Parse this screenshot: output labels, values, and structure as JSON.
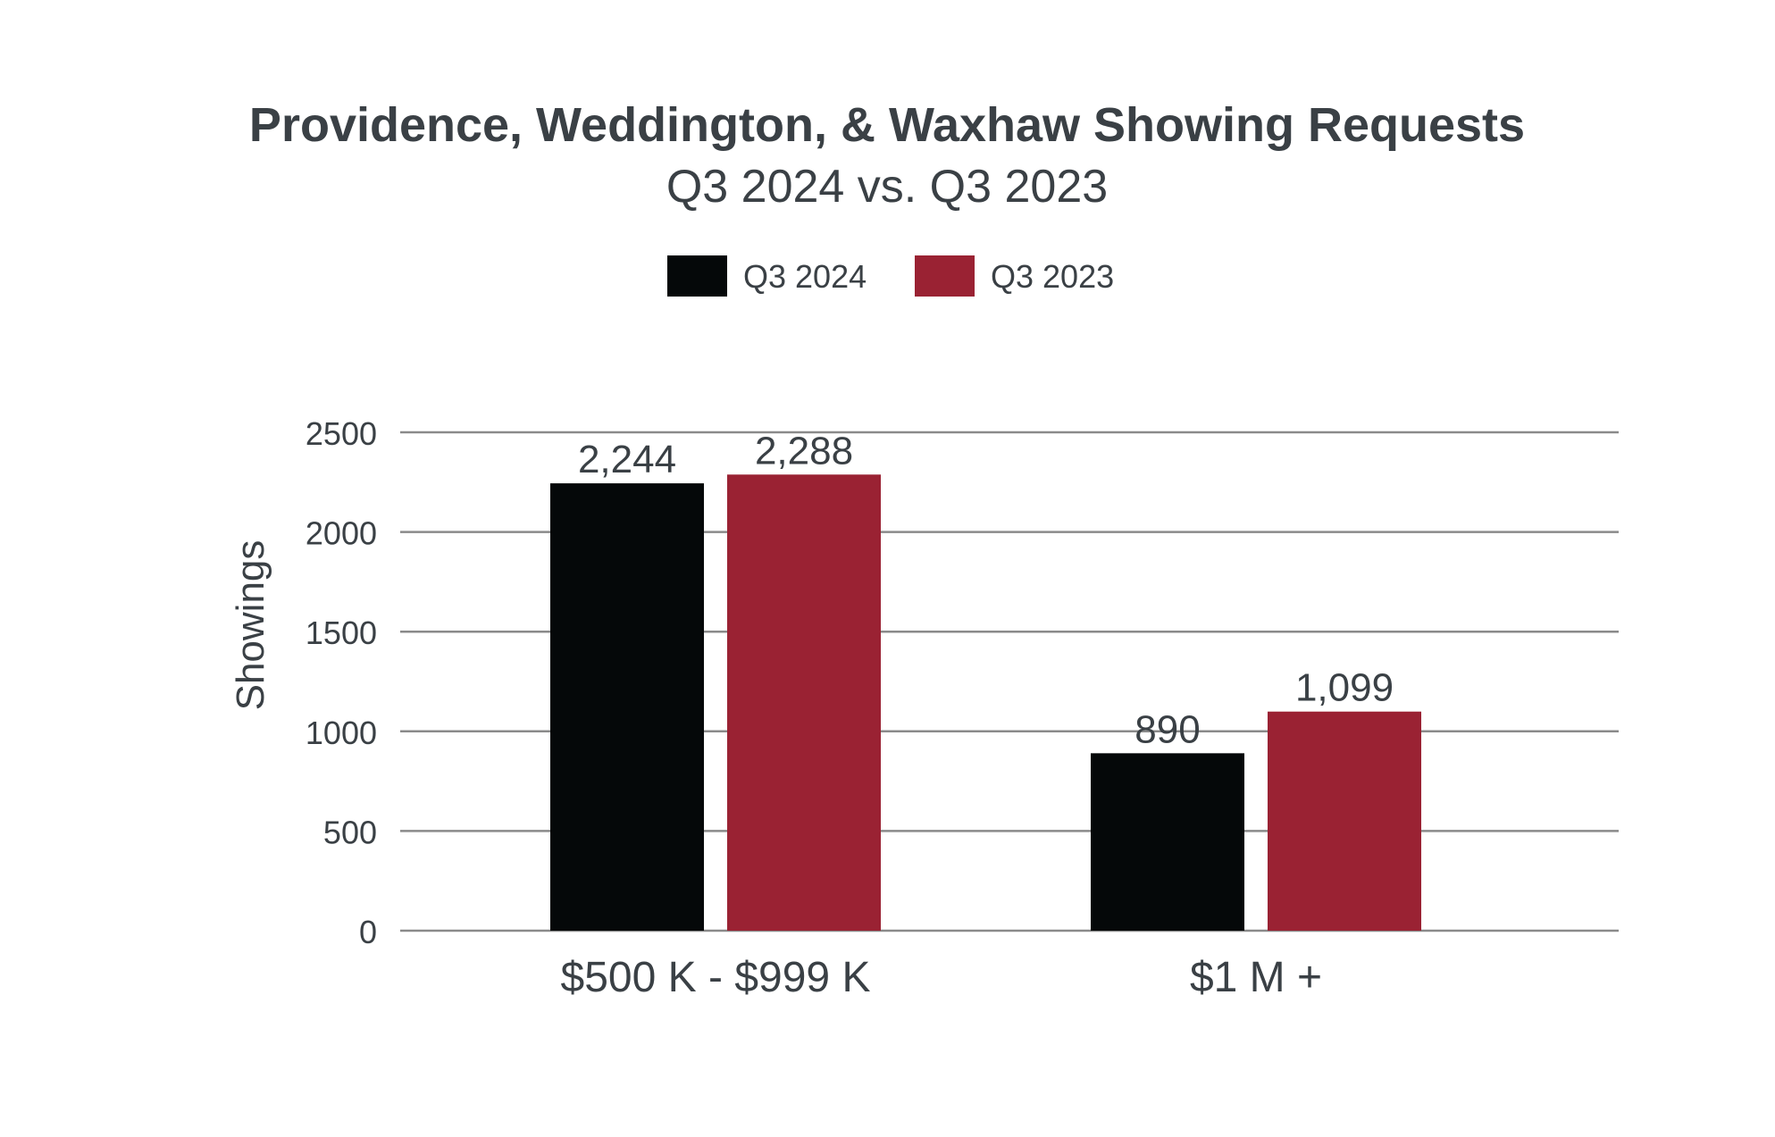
{
  "chart_data": {
    "type": "bar",
    "title": "Providence, Weddington, & Waxhaw Showing Requests",
    "subtitle": "Q3 2024 vs. Q3 2023",
    "categories": [
      "$500 K - $999 K",
      "$1 M +"
    ],
    "series": [
      {
        "name": "Q3 2024",
        "color": "#050809",
        "values": [
          2244,
          890
        ],
        "labels": [
          "2,244",
          "890"
        ]
      },
      {
        "name": "Q3 2023",
        "color": "#9a2233",
        "values": [
          2288,
          1099
        ],
        "labels": [
          "2,288",
          "1,099"
        ]
      }
    ],
    "xlabel": "",
    "ylabel": "Showings",
    "ylim": [
      0,
      2500
    ],
    "yticks": [
      0,
      500,
      1000,
      1500,
      2000,
      2500
    ],
    "ytick_labels": [
      "0",
      "500",
      "1000",
      "1500",
      "2000",
      "2500"
    ],
    "grid": true,
    "legend_position": "top-center"
  },
  "colors": {
    "text": "#3a4045",
    "grid": "#8a8a8a"
  }
}
